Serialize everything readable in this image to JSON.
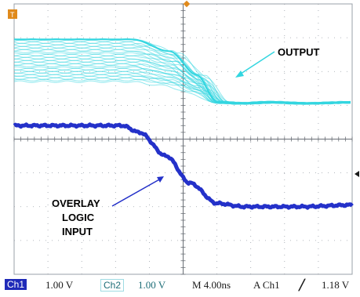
{
  "status": {
    "ch1_label": "Ch1",
    "ch1_scale": "1.00 V",
    "ch2_label": "Ch2",
    "ch2_scale": "1.00 V",
    "timebase": "M 4.00ns",
    "trigger": "A  Ch1",
    "trigger_slope_icon": "rising-edge-icon",
    "trigger_level": "1.18 V"
  },
  "colors": {
    "output_trace": "#33d6e0",
    "input_trace": "#2431c9",
    "grid": "#9aa0a8",
    "background": "#ffffff"
  },
  "chart_data": {
    "type": "line",
    "title": "",
    "annotations": [
      "OUTPUT",
      "OVERLAY LOGIC INPUT"
    ],
    "x_divisions": 10,
    "y_divisions": 8,
    "grid": true,
    "series": [
      {
        "name": "OUTPUT",
        "overlay": true,
        "x": [
          0,
          3.5,
          4.6,
          5.4,
          6.0,
          6.6,
          7.5,
          8.5,
          10
        ],
        "y": [
          6.95,
          6.95,
          6.6,
          5.9,
          5.1,
          5.05,
          5.1,
          5.05,
          5.1
        ],
        "spread_high_state": [
          5.7,
          6.95
        ]
      },
      {
        "name": "INPUT",
        "x": [
          0,
          3.2,
          3.7,
          4.5,
          5.2,
          6.0,
          6.8,
          8.5,
          10
        ],
        "y": [
          4.4,
          4.4,
          4.2,
          3.5,
          2.7,
          2.1,
          2.0,
          2.0,
          2.05
        ]
      }
    ]
  }
}
